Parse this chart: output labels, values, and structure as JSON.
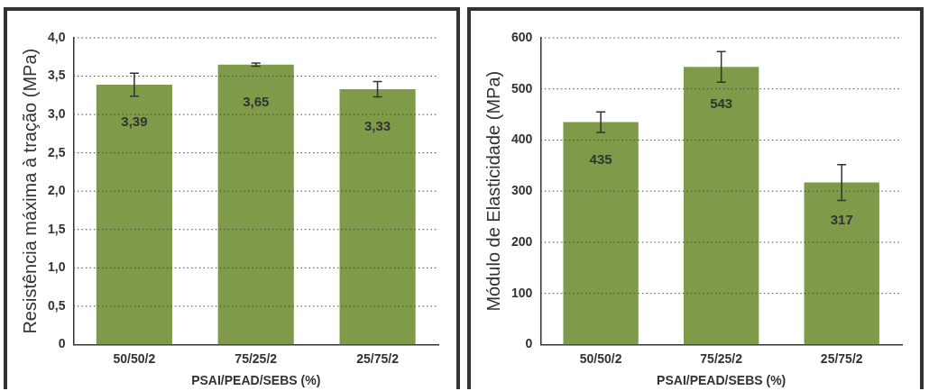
{
  "chart_data": [
    {
      "type": "bar",
      "xlabel": "PSAI/PEAD/SEBS (%)",
      "ylabel": "Resistência máxima à tração (MPa)",
      "categories": [
        "50/50/2",
        "75/25/2",
        "25/75/2"
      ],
      "values": [
        3.39,
        3.65,
        3.33
      ],
      "value_labels": [
        "3,39",
        "3,65",
        "3,33"
      ],
      "errors": [
        0.15,
        0.02,
        0.1
      ],
      "color": "#7f9a48",
      "ylim": [
        0,
        4
      ],
      "yticks": [
        0,
        {
          "value": 0.5,
          "label": "0,5"
        },
        {
          "value": 1,
          "label": "1,0"
        },
        {
          "value": 1.5,
          "label": "1,5"
        },
        {
          "value": 2,
          "label": "2,0"
        },
        {
          "value": 2.5,
          "label": "2,5"
        },
        {
          "value": 3,
          "label": "3,0"
        },
        {
          "value": 3.5,
          "label": "3,5"
        },
        {
          "value": 4,
          "label": "4,0"
        }
      ],
      "grid": "y",
      "legend": false
    },
    {
      "type": "bar",
      "xlabel": "PSAI/PEAD/SEBS (%)",
      "ylabel": "Módulo de Elasticidade (MPa)",
      "categories": [
        "50/50/2",
        "75/25/2",
        "25/75/2"
      ],
      "values": [
        435,
        543,
        317
      ],
      "value_labels": [
        "435",
        "543",
        "317"
      ],
      "errors": [
        20,
        30,
        35
      ],
      "color": "#7f9a48",
      "ylim": [
        0,
        600
      ],
      "yticks": [
        0,
        100,
        200,
        300,
        400,
        500,
        600
      ],
      "grid": "y",
      "legend": false
    }
  ]
}
